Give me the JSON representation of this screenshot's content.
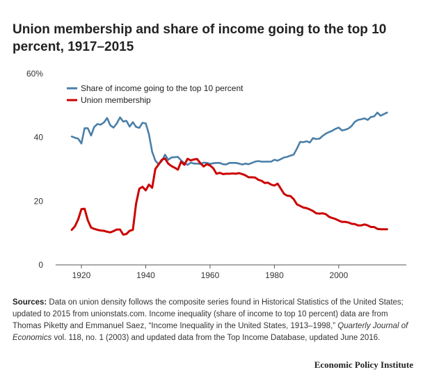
{
  "title": "Union membership and share of income going to the top 10 percent, 1917–2015",
  "notes": {
    "label": "Sources:",
    "text_1": " Data on union density follows the composite series found in Historical Statistics of the United States; updated to 2015 from unionstats.com. Income inequality (share of income to top 10 percent) data are from Thomas Piketty and Emmanuel Saez, “Income Inequality in the United States, 1913–1998,” ",
    "journal": "Quarterly Journal of Economics",
    "text_2": " vol. 118, no. 1 (2003) and updated data from the Top Income Database, updated June 2016."
  },
  "brand": "Economic Policy Institute",
  "chart_data": {
    "type": "line",
    "title": "Union membership and share of income going to the top 10 percent, 1917–2015",
    "xlim": [
      1912,
      2021
    ],
    "ylim": [
      0,
      60
    ],
    "y_ticks": [
      0,
      20,
      40,
      60
    ],
    "y_tick_labels": [
      "0",
      "20",
      "40",
      "60%"
    ],
    "x_ticks": [
      1920,
      1940,
      1960,
      1980,
      2000
    ],
    "x_tick_labels": [
      "1920",
      "1940",
      "1960",
      "1980",
      "2000"
    ],
    "grid": false,
    "legend_position": "top-left",
    "series": [
      {
        "name": "Share of income going to the top 10 percent",
        "color": "#4a7fa8",
        "x": [
          1917,
          1918,
          1919,
          1920,
          1921,
          1922,
          1923,
          1924,
          1925,
          1926,
          1927,
          1928,
          1929,
          1930,
          1931,
          1932,
          1933,
          1934,
          1935,
          1936,
          1937,
          1938,
          1939,
          1940,
          1941,
          1942,
          1943,
          1944,
          1945,
          1946,
          1947,
          1948,
          1949,
          1950,
          1951,
          1952,
          1953,
          1954,
          1955,
          1956,
          1957,
          1958,
          1959,
          1960,
          1961,
          1962,
          1963,
          1964,
          1965,
          1966,
          1967,
          1968,
          1969,
          1970,
          1971,
          1972,
          1973,
          1974,
          1975,
          1976,
          1977,
          1978,
          1979,
          1980,
          1981,
          1982,
          1983,
          1984,
          1985,
          1986,
          1987,
          1988,
          1989,
          1990,
          1991,
          1992,
          1993,
          1994,
          1995,
          1996,
          1997,
          1998,
          1999,
          2000,
          2001,
          2002,
          2003,
          2004,
          2005,
          2006,
          2007,
          2008,
          2009,
          2010,
          2011,
          2012,
          2013,
          2014,
          2015
        ],
        "values": [
          40.3,
          39.9,
          39.6,
          38.1,
          42.9,
          42.9,
          40.6,
          43.3,
          44.2,
          44.0,
          44.7,
          46.1,
          43.8,
          43.1,
          44.4,
          46.3,
          45.0,
          45.2,
          43.4,
          44.8,
          43.3,
          43.0,
          44.6,
          44.4,
          41.0,
          35.5,
          32.7,
          31.6,
          32.6,
          34.6,
          33.0,
          33.7,
          33.8,
          33.9,
          32.8,
          31.9,
          31.4,
          32.1,
          31.8,
          31.8,
          31.7,
          32.1,
          32.0,
          31.7,
          31.9,
          32.0,
          32.0,
          31.6,
          31.5,
          32.0,
          32.0,
          32.0,
          31.8,
          31.5,
          31.8,
          31.6,
          32.0,
          32.4,
          32.6,
          32.4,
          32.4,
          32.4,
          32.4,
          33.0,
          32.7,
          33.2,
          33.7,
          33.9,
          34.3,
          34.6,
          36.5,
          38.6,
          38.5,
          38.8,
          38.4,
          39.8,
          39.5,
          39.6,
          40.5,
          41.2,
          41.7,
          42.1,
          42.7,
          43.1,
          42.2,
          42.4,
          42.8,
          43.6,
          44.9,
          45.5,
          45.7,
          46.0,
          45.5,
          46.4,
          46.6,
          47.8,
          46.8,
          47.3,
          47.8
        ]
      },
      {
        "name": "Union membership",
        "color": "#cc0000",
        "x": [
          1917,
          1918,
          1919,
          1920,
          1921,
          1922,
          1923,
          1924,
          1925,
          1926,
          1927,
          1928,
          1929,
          1930,
          1931,
          1932,
          1933,
          1934,
          1935,
          1936,
          1937,
          1938,
          1939,
          1940,
          1941,
          1942,
          1943,
          1944,
          1945,
          1946,
          1947,
          1948,
          1949,
          1950,
          1951,
          1952,
          1953,
          1954,
          1955,
          1956,
          1957,
          1958,
          1959,
          1960,
          1961,
          1962,
          1963,
          1964,
          1965,
          1966,
          1967,
          1968,
          1969,
          1970,
          1971,
          1972,
          1973,
          1974,
          1975,
          1976,
          1977,
          1978,
          1979,
          1980,
          1981,
          1982,
          1983,
          1984,
          1985,
          1986,
          1987,
          1988,
          1989,
          1990,
          1991,
          1992,
          1993,
          1994,
          1995,
          1996,
          1997,
          1998,
          1999,
          2000,
          2001,
          2002,
          2003,
          2004,
          2005,
          2006,
          2007,
          2008,
          2009,
          2010,
          2011,
          2012,
          2013,
          2014,
          2015
        ],
        "values": [
          11.0,
          12.1,
          14.3,
          17.5,
          17.6,
          14.0,
          11.7,
          11.3,
          11.0,
          10.8,
          10.7,
          10.4,
          10.2,
          10.6,
          11.1,
          11.1,
          9.5,
          9.7,
          10.7,
          11.0,
          19.2,
          23.9,
          24.5,
          23.4,
          25.2,
          24.2,
          30.1,
          31.5,
          33.0,
          33.4,
          31.8,
          31.0,
          30.5,
          29.9,
          32.4,
          31.4,
          33.3,
          32.8,
          33.1,
          33.2,
          31.9,
          30.9,
          31.6,
          31.2,
          30.3,
          28.6,
          28.9,
          28.5,
          28.6,
          28.6,
          28.7,
          28.6,
          28.8,
          28.5,
          28.1,
          27.5,
          27.5,
          27.4,
          26.7,
          26.4,
          25.7,
          25.8,
          25.2,
          24.9,
          25.5,
          23.9,
          22.3,
          21.7,
          21.6,
          20.6,
          19.0,
          18.5,
          18.0,
          17.8,
          17.4,
          16.9,
          16.2,
          16.1,
          16.2,
          15.9,
          15.1,
          14.7,
          14.4,
          13.9,
          13.5,
          13.5,
          13.3,
          12.9,
          12.8,
          12.4,
          12.4,
          12.7,
          12.4,
          11.9,
          11.9,
          11.3,
          11.2,
          11.2,
          11.2
        ]
      }
    ]
  }
}
